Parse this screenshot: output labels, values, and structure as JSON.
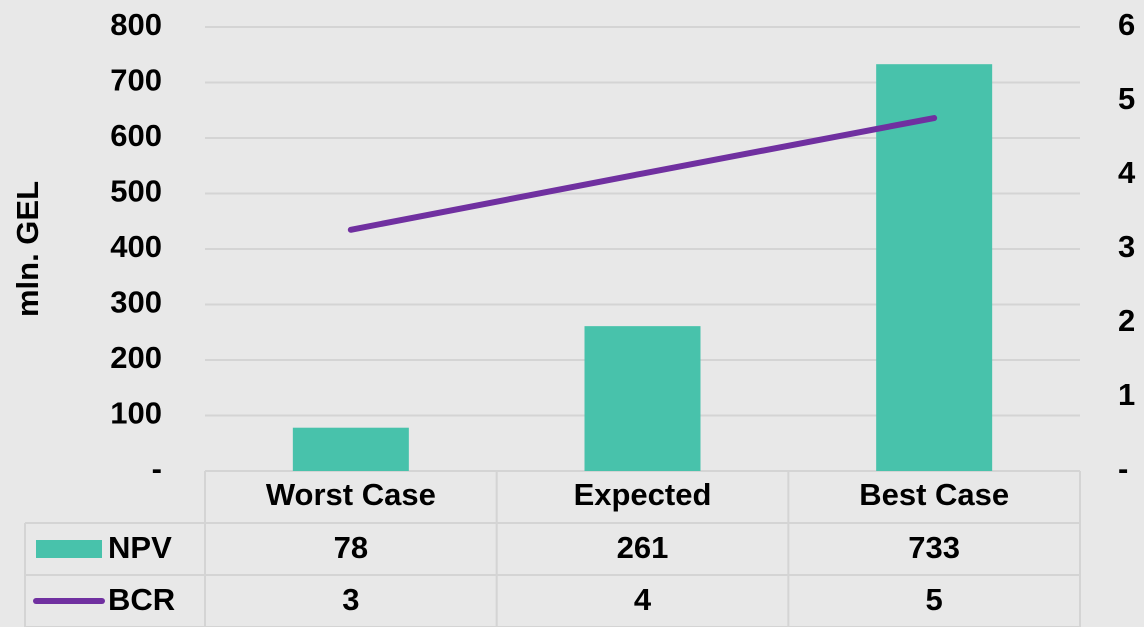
{
  "chart_data": {
    "type": "bar",
    "y_axis_label": "mln. GEL",
    "categories": [
      "Worst Case",
      "Expected",
      "Best Case"
    ],
    "series": [
      {
        "name": "NPV",
        "type": "bar",
        "color": "#48c2ab",
        "values": [
          78,
          261,
          733
        ]
      },
      {
        "name": "BCR",
        "type": "line",
        "color": "#7030a0",
        "axis": "y2",
        "values": [
          3.26,
          4.02,
          4.77
        ],
        "value_labels": [
          "3",
          "4",
          "5"
        ]
      }
    ],
    "ylim": [
      0,
      800
    ],
    "yticks": [
      {
        "value": 0,
        "label": "-"
      },
      100,
      200,
      300,
      400,
      500,
      600,
      700,
      800
    ],
    "y2lim": [
      0,
      6
    ],
    "y2ticks": [
      {
        "value": 0,
        "label": "-"
      },
      1,
      2,
      3,
      4,
      5,
      6
    ],
    "grid": true,
    "data_table": true
  }
}
